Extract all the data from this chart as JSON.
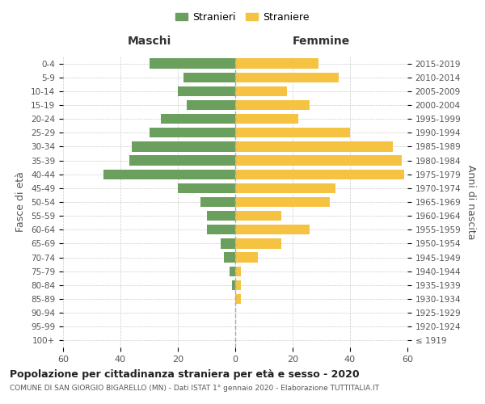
{
  "age_groups": [
    "100+",
    "95-99",
    "90-94",
    "85-89",
    "80-84",
    "75-79",
    "70-74",
    "65-69",
    "60-64",
    "55-59",
    "50-54",
    "45-49",
    "40-44",
    "35-39",
    "30-34",
    "25-29",
    "20-24",
    "15-19",
    "10-14",
    "5-9",
    "0-4"
  ],
  "birth_years": [
    "≤ 1919",
    "1920-1924",
    "1925-1929",
    "1930-1934",
    "1935-1939",
    "1940-1944",
    "1945-1949",
    "1950-1954",
    "1955-1959",
    "1960-1964",
    "1965-1969",
    "1970-1974",
    "1975-1979",
    "1980-1984",
    "1985-1989",
    "1990-1994",
    "1995-1999",
    "2000-2004",
    "2005-2009",
    "2010-2014",
    "2015-2019"
  ],
  "maschi": [
    0,
    0,
    0,
    0,
    1,
    2,
    4,
    5,
    10,
    10,
    12,
    20,
    46,
    37,
    36,
    30,
    26,
    17,
    20,
    18,
    30
  ],
  "femmine": [
    0,
    0,
    0,
    2,
    2,
    2,
    8,
    16,
    26,
    16,
    33,
    35,
    59,
    58,
    55,
    40,
    22,
    26,
    18,
    36,
    29
  ],
  "color_maschi": "#6a9f5e",
  "color_femmine": "#f5c242",
  "title": "Popolazione per cittadinanza straniera per età e sesso - 2020",
  "subtitle": "COMUNE DI SAN GIORGIO BIGARELLO (MN) - Dati ISTAT 1° gennaio 2020 - Elaborazione TUTTITALIA.IT",
  "ylabel_left": "Fasce di età",
  "ylabel_right": "Anni di nascita",
  "xlabel_maschi": "Maschi",
  "xlabel_femmine": "Femmine",
  "legend_stranieri": "Stranieri",
  "legend_straniere": "Straniere",
  "xlim": 60,
  "bg_color": "#ffffff",
  "grid_color": "#cccccc"
}
